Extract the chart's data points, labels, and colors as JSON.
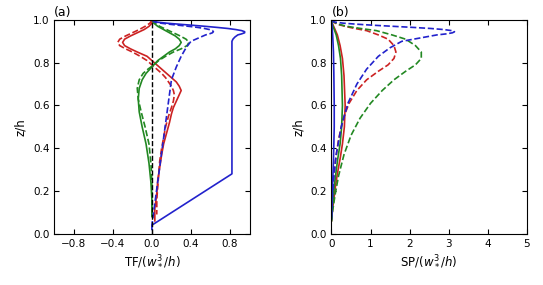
{
  "panel_a": {
    "title": "(a)",
    "xlabel": "TF/$({w_*^3}/{h})$",
    "ylabel": "z/h",
    "xlim": [
      -1.0,
      1.0
    ],
    "ylim": [
      0.0,
      1.0
    ],
    "xticks": [
      -0.8,
      -0.4,
      0.0,
      0.4,
      0.8
    ],
    "yticks": [
      0.0,
      0.2,
      0.4,
      0.6,
      0.8,
      1.0
    ],
    "curves": {
      "red_solid": {
        "color": "#cc2222",
        "linestyle": "solid",
        "lw": 1.2,
        "x": [
          0.0,
          0.0,
          -0.03,
          -0.08,
          -0.15,
          -0.22,
          -0.28,
          -0.3,
          -0.28,
          -0.22,
          -0.15,
          -0.05,
          0.0,
          0.05,
          0.1,
          0.15,
          0.2,
          0.25,
          0.28,
          0.3,
          0.28,
          0.25,
          0.22,
          0.2,
          0.18,
          0.15,
          0.12,
          0.1,
          0.08,
          0.06,
          0.05,
          0.04,
          0.03,
          0.03,
          0.03
        ],
        "z": [
          1.0,
          0.985,
          0.97,
          0.955,
          0.94,
          0.925,
          0.91,
          0.895,
          0.88,
          0.865,
          0.85,
          0.83,
          0.81,
          0.79,
          0.77,
          0.75,
          0.73,
          0.71,
          0.69,
          0.67,
          0.65,
          0.62,
          0.59,
          0.56,
          0.52,
          0.47,
          0.42,
          0.37,
          0.31,
          0.25,
          0.19,
          0.15,
          0.12,
          0.09,
          0.06
        ]
      },
      "red_dashed": {
        "color": "#cc2222",
        "linestyle": "dashed",
        "lw": 1.2,
        "x": [
          0.0,
          -0.02,
          -0.07,
          -0.13,
          -0.2,
          -0.27,
          -0.33,
          -0.35,
          -0.33,
          -0.27,
          -0.2,
          -0.12,
          -0.05,
          0.0,
          0.05,
          0.1,
          0.14,
          0.17,
          0.2,
          0.22,
          0.23,
          0.22,
          0.2,
          0.17,
          0.14,
          0.12,
          0.1,
          0.08,
          0.07,
          0.06,
          0.05,
          0.05,
          0.05
        ],
        "z": [
          1.0,
          0.985,
          0.97,
          0.955,
          0.94,
          0.925,
          0.91,
          0.895,
          0.88,
          0.865,
          0.85,
          0.83,
          0.81,
          0.79,
          0.77,
          0.75,
          0.73,
          0.71,
          0.69,
          0.67,
          0.65,
          0.62,
          0.59,
          0.55,
          0.5,
          0.45,
          0.4,
          0.34,
          0.28,
          0.22,
          0.16,
          0.12,
          0.09
        ]
      },
      "green_solid": {
        "color": "#228822",
        "linestyle": "solid",
        "lw": 1.2,
        "x": [
          0.0,
          0.02,
          0.06,
          0.12,
          0.18,
          0.24,
          0.28,
          0.3,
          0.28,
          0.24,
          0.18,
          0.12,
          0.06,
          0.02,
          -0.02,
          -0.06,
          -0.1,
          -0.13,
          -0.14,
          -0.13,
          -0.1,
          -0.06,
          -0.03,
          -0.01,
          0.0,
          0.0
        ],
        "z": [
          1.0,
          0.985,
          0.97,
          0.955,
          0.94,
          0.925,
          0.91,
          0.895,
          0.88,
          0.865,
          0.85,
          0.83,
          0.81,
          0.79,
          0.77,
          0.75,
          0.72,
          0.68,
          0.63,
          0.57,
          0.5,
          0.42,
          0.33,
          0.24,
          0.16,
          0.08
        ]
      },
      "green_dashed": {
        "color": "#228822",
        "linestyle": "dashed",
        "lw": 1.2,
        "x": [
          0.0,
          0.03,
          0.08,
          0.15,
          0.22,
          0.29,
          0.35,
          0.38,
          0.36,
          0.3,
          0.22,
          0.14,
          0.07,
          0.02,
          -0.04,
          -0.09,
          -0.13,
          -0.15,
          -0.14,
          -0.11,
          -0.07,
          -0.03,
          -0.01,
          0.0,
          0.0
        ],
        "z": [
          1.0,
          0.985,
          0.97,
          0.955,
          0.94,
          0.925,
          0.91,
          0.895,
          0.88,
          0.865,
          0.85,
          0.83,
          0.81,
          0.79,
          0.77,
          0.75,
          0.72,
          0.68,
          0.63,
          0.57,
          0.5,
          0.42,
          0.33,
          0.24,
          0.08
        ]
      },
      "blue_solid": {
        "color": "#2222cc",
        "linestyle": "solid",
        "lw": 1.2,
        "x": [
          0.0,
          0.05,
          0.15,
          0.28,
          0.42,
          0.55,
          0.67,
          0.78,
          0.86,
          0.92,
          0.95,
          0.95,
          0.92,
          0.88,
          0.85,
          0.83,
          0.82,
          0.82,
          0.82,
          0.82,
          0.82,
          0.82,
          0.82,
          0.82,
          0.82,
          0.82,
          0.82,
          0.82,
          0.82,
          0.82,
          0.82,
          0.82,
          0.0,
          0.0
        ],
        "z": [
          1.0,
          0.99,
          0.985,
          0.98,
          0.975,
          0.97,
          0.965,
          0.96,
          0.955,
          0.95,
          0.945,
          0.94,
          0.935,
          0.93,
          0.92,
          0.91,
          0.9,
          0.88,
          0.85,
          0.82,
          0.78,
          0.73,
          0.68,
          0.63,
          0.58,
          0.52,
          0.46,
          0.4,
          0.36,
          0.33,
          0.3,
          0.28,
          0.04,
          0.02
        ]
      },
      "blue_dashed": {
        "color": "#2222cc",
        "linestyle": "dashed",
        "lw": 1.2,
        "x": [
          0.0,
          0.03,
          0.09,
          0.18,
          0.28,
          0.38,
          0.47,
          0.54,
          0.59,
          0.62,
          0.63,
          0.62,
          0.59,
          0.55,
          0.5,
          0.45,
          0.4,
          0.35,
          0.3,
          0.25,
          0.2,
          0.0,
          0.0
        ],
        "z": [
          1.0,
          0.99,
          0.985,
          0.98,
          0.975,
          0.97,
          0.965,
          0.96,
          0.955,
          0.95,
          0.945,
          0.94,
          0.935,
          0.93,
          0.92,
          0.91,
          0.9,
          0.87,
          0.83,
          0.78,
          0.72,
          0.04,
          0.02
        ]
      }
    }
  },
  "panel_b": {
    "title": "(b)",
    "xlabel": "SP/$({w_*^3}/{h})$",
    "ylabel": "z/h",
    "xlim": [
      0.0,
      5.0
    ],
    "ylim": [
      0.0,
      1.0
    ],
    "xticks": [
      0.0,
      1.0,
      2.0,
      3.0,
      4.0,
      5.0
    ],
    "yticks": [
      0.0,
      0.2,
      0.4,
      0.6,
      0.8,
      1.0
    ],
    "curves": {
      "red_solid": {
        "color": "#cc2222",
        "linestyle": "solid",
        "lw": 1.2,
        "x": [
          0.0,
          0.03,
          0.08,
          0.15,
          0.22,
          0.28,
          0.32,
          0.35,
          0.33,
          0.28,
          0.22,
          0.15,
          0.1,
          0.06,
          0.03,
          0.01,
          0.0
        ],
        "z": [
          1.0,
          0.98,
          0.96,
          0.93,
          0.88,
          0.82,
          0.74,
          0.6,
          0.5,
          0.42,
          0.35,
          0.28,
          0.22,
          0.16,
          0.12,
          0.08,
          0.06
        ]
      },
      "red_dashed": {
        "color": "#cc2222",
        "linestyle": "dashed",
        "lw": 1.2,
        "x": [
          0.0,
          0.05,
          0.15,
          0.35,
          0.6,
          0.9,
          1.2,
          1.45,
          1.6,
          1.65,
          1.6,
          1.45,
          1.2,
          0.9,
          0.65,
          0.45,
          0.3,
          0.18,
          0.1,
          0.05,
          0.02,
          0.01,
          0.0
        ],
        "z": [
          1.0,
          0.99,
          0.98,
          0.97,
          0.96,
          0.95,
          0.93,
          0.91,
          0.88,
          0.85,
          0.82,
          0.79,
          0.76,
          0.72,
          0.67,
          0.61,
          0.54,
          0.44,
          0.34,
          0.25,
          0.17,
          0.11,
          0.07
        ]
      },
      "green_solid": {
        "color": "#228822",
        "linestyle": "solid",
        "lw": 1.2,
        "x": [
          0.0,
          0.02,
          0.06,
          0.12,
          0.18,
          0.23,
          0.26,
          0.28,
          0.26,
          0.22,
          0.16,
          0.11,
          0.07,
          0.04,
          0.02,
          0.01,
          0.0
        ],
        "z": [
          1.0,
          0.98,
          0.96,
          0.93,
          0.88,
          0.82,
          0.74,
          0.6,
          0.5,
          0.42,
          0.35,
          0.28,
          0.22,
          0.16,
          0.12,
          0.08,
          0.06
        ]
      },
      "green_dashed": {
        "color": "#228822",
        "linestyle": "dashed",
        "lw": 1.2,
        "x": [
          0.0,
          0.06,
          0.18,
          0.4,
          0.75,
          1.15,
          1.55,
          1.9,
          2.15,
          2.3,
          2.3,
          2.15,
          1.9,
          1.6,
          1.3,
          1.0,
          0.73,
          0.5,
          0.32,
          0.18,
          0.09,
          0.04,
          0.01,
          0.0
        ],
        "z": [
          1.0,
          0.99,
          0.98,
          0.97,
          0.96,
          0.95,
          0.93,
          0.91,
          0.88,
          0.85,
          0.82,
          0.79,
          0.76,
          0.72,
          0.67,
          0.61,
          0.54,
          0.46,
          0.37,
          0.27,
          0.18,
          0.12,
          0.08,
          0.06
        ]
      },
      "blue_solid": {
        "color": "#2222cc",
        "linestyle": "solid",
        "lw": 1.2,
        "x": [
          0.0,
          0.01,
          0.03,
          0.05,
          0.06,
          0.07,
          0.07,
          0.06,
          0.05,
          0.03,
          0.01,
          0.0
        ],
        "z": [
          1.0,
          0.98,
          0.93,
          0.85,
          0.75,
          0.6,
          0.5,
          0.42,
          0.34,
          0.24,
          0.14,
          0.07
        ]
      },
      "blue_dashed": {
        "color": "#2222cc",
        "linestyle": "dashed",
        "lw": 1.2,
        "x": [
          0.0,
          0.08,
          0.3,
          0.65,
          1.1,
          1.6,
          2.1,
          2.55,
          2.88,
          3.08,
          3.15,
          3.1,
          2.95,
          2.7,
          2.4,
          2.1,
          1.8,
          1.5,
          1.2,
          0.9,
          0.65,
          0.42,
          0.25,
          0.12,
          0.05,
          0.01,
          0.0
        ],
        "z": [
          1.0,
          0.99,
          0.985,
          0.98,
          0.975,
          0.97,
          0.965,
          0.96,
          0.955,
          0.95,
          0.945,
          0.94,
          0.935,
          0.93,
          0.92,
          0.91,
          0.9,
          0.87,
          0.83,
          0.77,
          0.7,
          0.61,
          0.5,
          0.37,
          0.25,
          0.13,
          0.07
        ]
      }
    }
  },
  "background_color": "#ffffff"
}
